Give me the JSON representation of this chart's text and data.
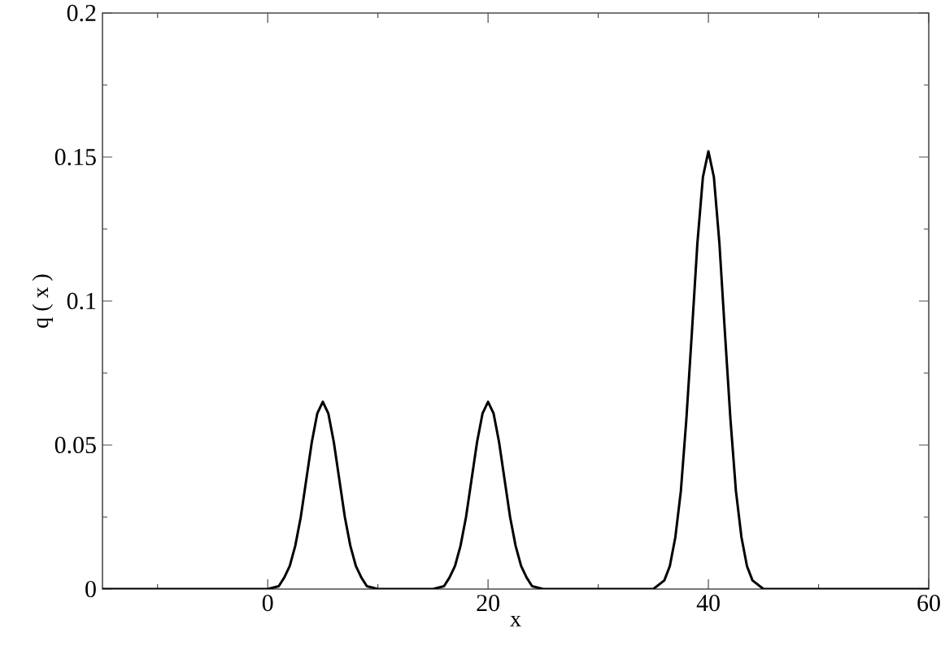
{
  "chart_data": {
    "type": "line",
    "xlabel": "x",
    "ylabel": "q ( x )",
    "xlim": [
      -15,
      60
    ],
    "ylim": [
      0,
      0.2
    ],
    "xticks": [
      {
        "value": -10,
        "label": null
      },
      0,
      {
        "value": 10,
        "label": null
      },
      20,
      {
        "value": 30,
        "label": null
      },
      40,
      {
        "value": 50,
        "label": null
      },
      60
    ],
    "yticks": [
      0,
      {
        "value": 0.025,
        "label": null
      },
      0.05,
      {
        "value": 0.075,
        "label": null
      },
      0.1,
      {
        "value": 0.125,
        "label": null
      },
      0.15,
      {
        "value": 0.175,
        "label": null
      },
      0.2
    ],
    "marker": "none",
    "line_style": "solid",
    "series": [
      {
        "color": "#000000",
        "x": [
          -15,
          0,
          1,
          1.5,
          2,
          2.5,
          3,
          3.5,
          4,
          4.5,
          5,
          5.5,
          6,
          6.5,
          7,
          7.5,
          8,
          8.5,
          9,
          10,
          15,
          16,
          16.5,
          17,
          17.5,
          18,
          18.5,
          19,
          19.5,
          20,
          20.5,
          21,
          21.5,
          22,
          22.5,
          23,
          23.5,
          24,
          25,
          35,
          36,
          36.5,
          37,
          37.5,
          38,
          38.5,
          39,
          39.5,
          40,
          40.5,
          41,
          41.5,
          42,
          42.5,
          43,
          43.5,
          44,
          45,
          60
        ],
        "values": [
          0,
          0,
          0.001,
          0.004,
          0.008,
          0.015,
          0.025,
          0.038,
          0.051,
          0.061,
          0.065,
          0.061,
          0.051,
          0.038,
          0.025,
          0.015,
          0.008,
          0.004,
          0.001,
          0,
          0,
          0.001,
          0.004,
          0.008,
          0.015,
          0.025,
          0.038,
          0.051,
          0.061,
          0.065,
          0.061,
          0.051,
          0.038,
          0.025,
          0.015,
          0.008,
          0.004,
          0.001,
          0,
          0,
          0.003,
          0.008,
          0.018,
          0.034,
          0.059,
          0.089,
          0.12,
          0.143,
          0.152,
          0.143,
          0.12,
          0.089,
          0.059,
          0.034,
          0.018,
          0.008,
          0.003,
          0,
          0
        ]
      }
    ]
  }
}
